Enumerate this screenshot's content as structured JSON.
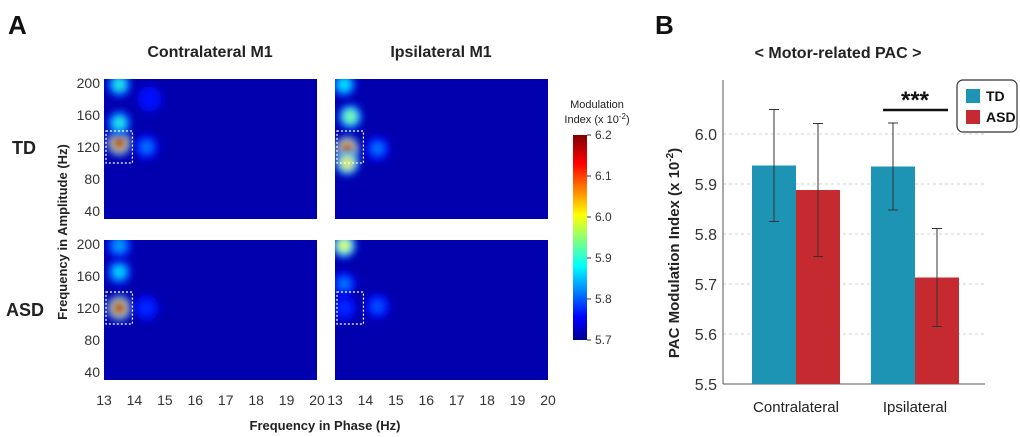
{
  "panel_a": {
    "label": "A",
    "column_titles": [
      "Contralateral M1",
      "Ipsilateral M1"
    ],
    "row_labels": [
      "TD",
      "ASD"
    ],
    "xlabel": "Frequency in Phase (Hz)",
    "ylabel": "Frequency in Amplitude (Hz)",
    "x_ticks": [
      "13",
      "14",
      "15",
      "16",
      "17",
      "18",
      "19",
      "20"
    ],
    "y_ticks": [
      "200",
      "160",
      "120",
      "80",
      "40"
    ],
    "colorbar": {
      "title_line1": "Modulation",
      "title_line2": "Index (x 10",
      "title_exp": "-2",
      "title_end": ")",
      "ticks": [
        "6.2",
        "6.1",
        "6.0",
        "5.9",
        "5.8",
        "5.7"
      ],
      "range": [
        5.7,
        6.2
      ]
    }
  },
  "panel_b": {
    "label": "B",
    "title": "< Motor-related PAC >",
    "ylabel_main": "PAC Modulation Index (x 10",
    "ylabel_exp": "-2",
    "ylabel_end": ")",
    "significance": "***",
    "legend": [
      "TD",
      "ASD"
    ],
    "colors": {
      "TD": "#1d94b3",
      "ASD": "#c62a31"
    }
  },
  "chart_data": [
    {
      "type": "heatmap",
      "panel": "A",
      "x": [
        13,
        14,
        15,
        16,
        17,
        18,
        19,
        20
      ],
      "y": [
        40,
        80,
        120,
        160,
        200
      ],
      "xlabel": "Frequency in Phase (Hz)",
      "ylabel": "Frequency in Amplitude (Hz)",
      "xlim": [
        13,
        20
      ],
      "ylim": [
        30,
        205
      ],
      "color_range": [
        5.7,
        6.2
      ],
      "roi_box": {
        "x": [
          13,
          14
        ],
        "y": [
          100,
          140
        ]
      },
      "maps": [
        {
          "row": "TD",
          "column": "Contralateral M1",
          "blobs": [
            {
              "phase": 13.5,
              "amp": 125,
              "value": 6.2
            },
            {
              "phase": 13.5,
              "amp": 150,
              "value": 5.9
            },
            {
              "phase": 13.5,
              "amp": 198,
              "value": 5.9
            },
            {
              "phase": 14.4,
              "amp": 120,
              "value": 5.82
            },
            {
              "phase": 14.5,
              "amp": 180,
              "value": 5.76
            }
          ]
        },
        {
          "row": "TD",
          "column": "Ipsilateral M1",
          "blobs": [
            {
              "phase": 13.4,
              "amp": 118,
              "value": 6.17
            },
            {
              "phase": 13.5,
              "amp": 158,
              "value": 5.95
            },
            {
              "phase": 13.4,
              "amp": 100,
              "value": 6.02
            },
            {
              "phase": 13.3,
              "amp": 198,
              "value": 5.88
            },
            {
              "phase": 14.4,
              "amp": 118,
              "value": 5.82
            }
          ]
        },
        {
          "row": "ASD",
          "column": "Contralateral M1",
          "blobs": [
            {
              "phase": 13.5,
              "amp": 120,
              "value": 6.2
            },
            {
              "phase": 13.5,
              "amp": 165,
              "value": 5.87
            },
            {
              "phase": 13.5,
              "amp": 198,
              "value": 5.84
            },
            {
              "phase": 14.4,
              "amp": 120,
              "value": 5.78
            }
          ]
        },
        {
          "row": "ASD",
          "column": "Ipsilateral M1",
          "blobs": [
            {
              "phase": 13.3,
              "amp": 198,
              "value": 6.0
            },
            {
              "phase": 13.3,
              "amp": 150,
              "value": 5.82
            },
            {
              "phase": 13.3,
              "amp": 120,
              "value": 5.78
            },
            {
              "phase": 14.4,
              "amp": 122,
              "value": 5.8
            }
          ]
        }
      ]
    },
    {
      "type": "bar",
      "panel": "B",
      "title": "< Motor-related PAC >",
      "categories": [
        "Contralateral",
        "Ipsilateral"
      ],
      "series": [
        {
          "name": "TD",
          "values": [
            5.937,
            5.935
          ],
          "error": [
            0.112,
            0.087
          ]
        },
        {
          "name": "ASD",
          "values": [
            5.888,
            5.713
          ],
          "error": [
            0.133,
            0.098
          ]
        }
      ],
      "ylabel": "PAC Modulation Index (x 10-2)",
      "ylim": [
        5.5,
        6.1
      ],
      "yticks": [
        "5.5",
        "5.6",
        "5.7",
        "5.8",
        "5.9",
        "6.0"
      ],
      "grid": true,
      "legend": "top-right",
      "annotations": [
        {
          "text": "***",
          "category": "Ipsilateral"
        }
      ]
    }
  ]
}
